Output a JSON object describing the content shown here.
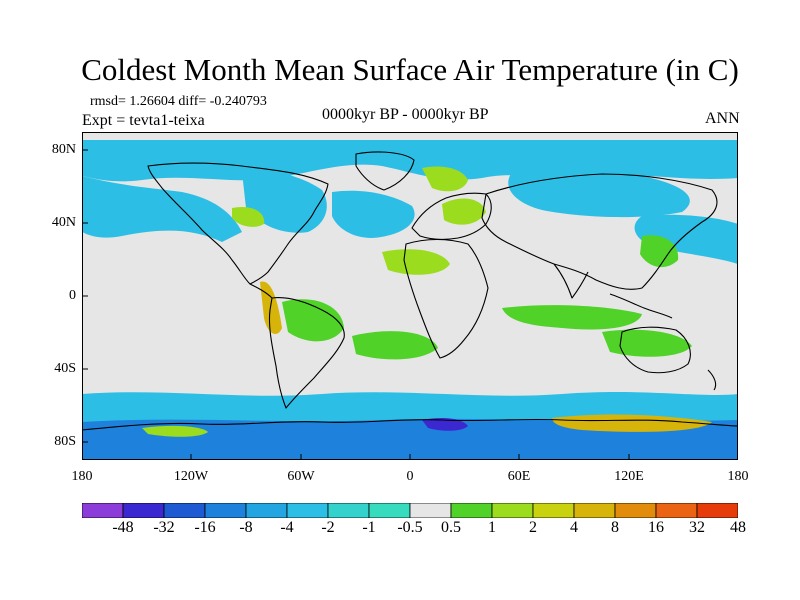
{
  "title": "Coldest Month Mean Surface Air Temperature (in C)",
  "stats_line": "rmsd= 1.26604 diff= -0.240793",
  "experiment_line": "Expt = tevta1-teixa",
  "period_line": "0000kyr BP - 0000kyr BP",
  "season_label": "ANN",
  "y_axis_labels": [
    "80N",
    "40N",
    "0",
    "40S",
    "80S"
  ],
  "x_axis_labels": [
    "180",
    "120W",
    "60W",
    "0",
    "60E",
    "120E",
    "180"
  ],
  "colorbar": {
    "labels": [
      "-48",
      "-32",
      "-16",
      "-8",
      "-4",
      "-2",
      "-1",
      "-0.5",
      "0.5",
      "1",
      "2",
      "4",
      "8",
      "16",
      "32",
      "48"
    ],
    "colors": [
      "#8c3cd8",
      "#3c28d0",
      "#1e5ad2",
      "#1e82dc",
      "#23a5e1",
      "#2dbee6",
      "#34d2cc",
      "#37dcbe",
      "#e6e6e6",
      "#50d228",
      "#9bdc1e",
      "#c8d20f",
      "#d7b40a",
      "#e18c0a",
      "#eb6414",
      "#e63c0a"
    ]
  },
  "map_colors": {
    "neutral": "#e6e6e6",
    "light_cool": "#2dbee6",
    "cool": "#1e82dc",
    "cold": "#3c28d0",
    "warm": "#9bdc1e",
    "warm_green": "#50d228",
    "hot": "#d7b40a",
    "coast": "#000000"
  }
}
